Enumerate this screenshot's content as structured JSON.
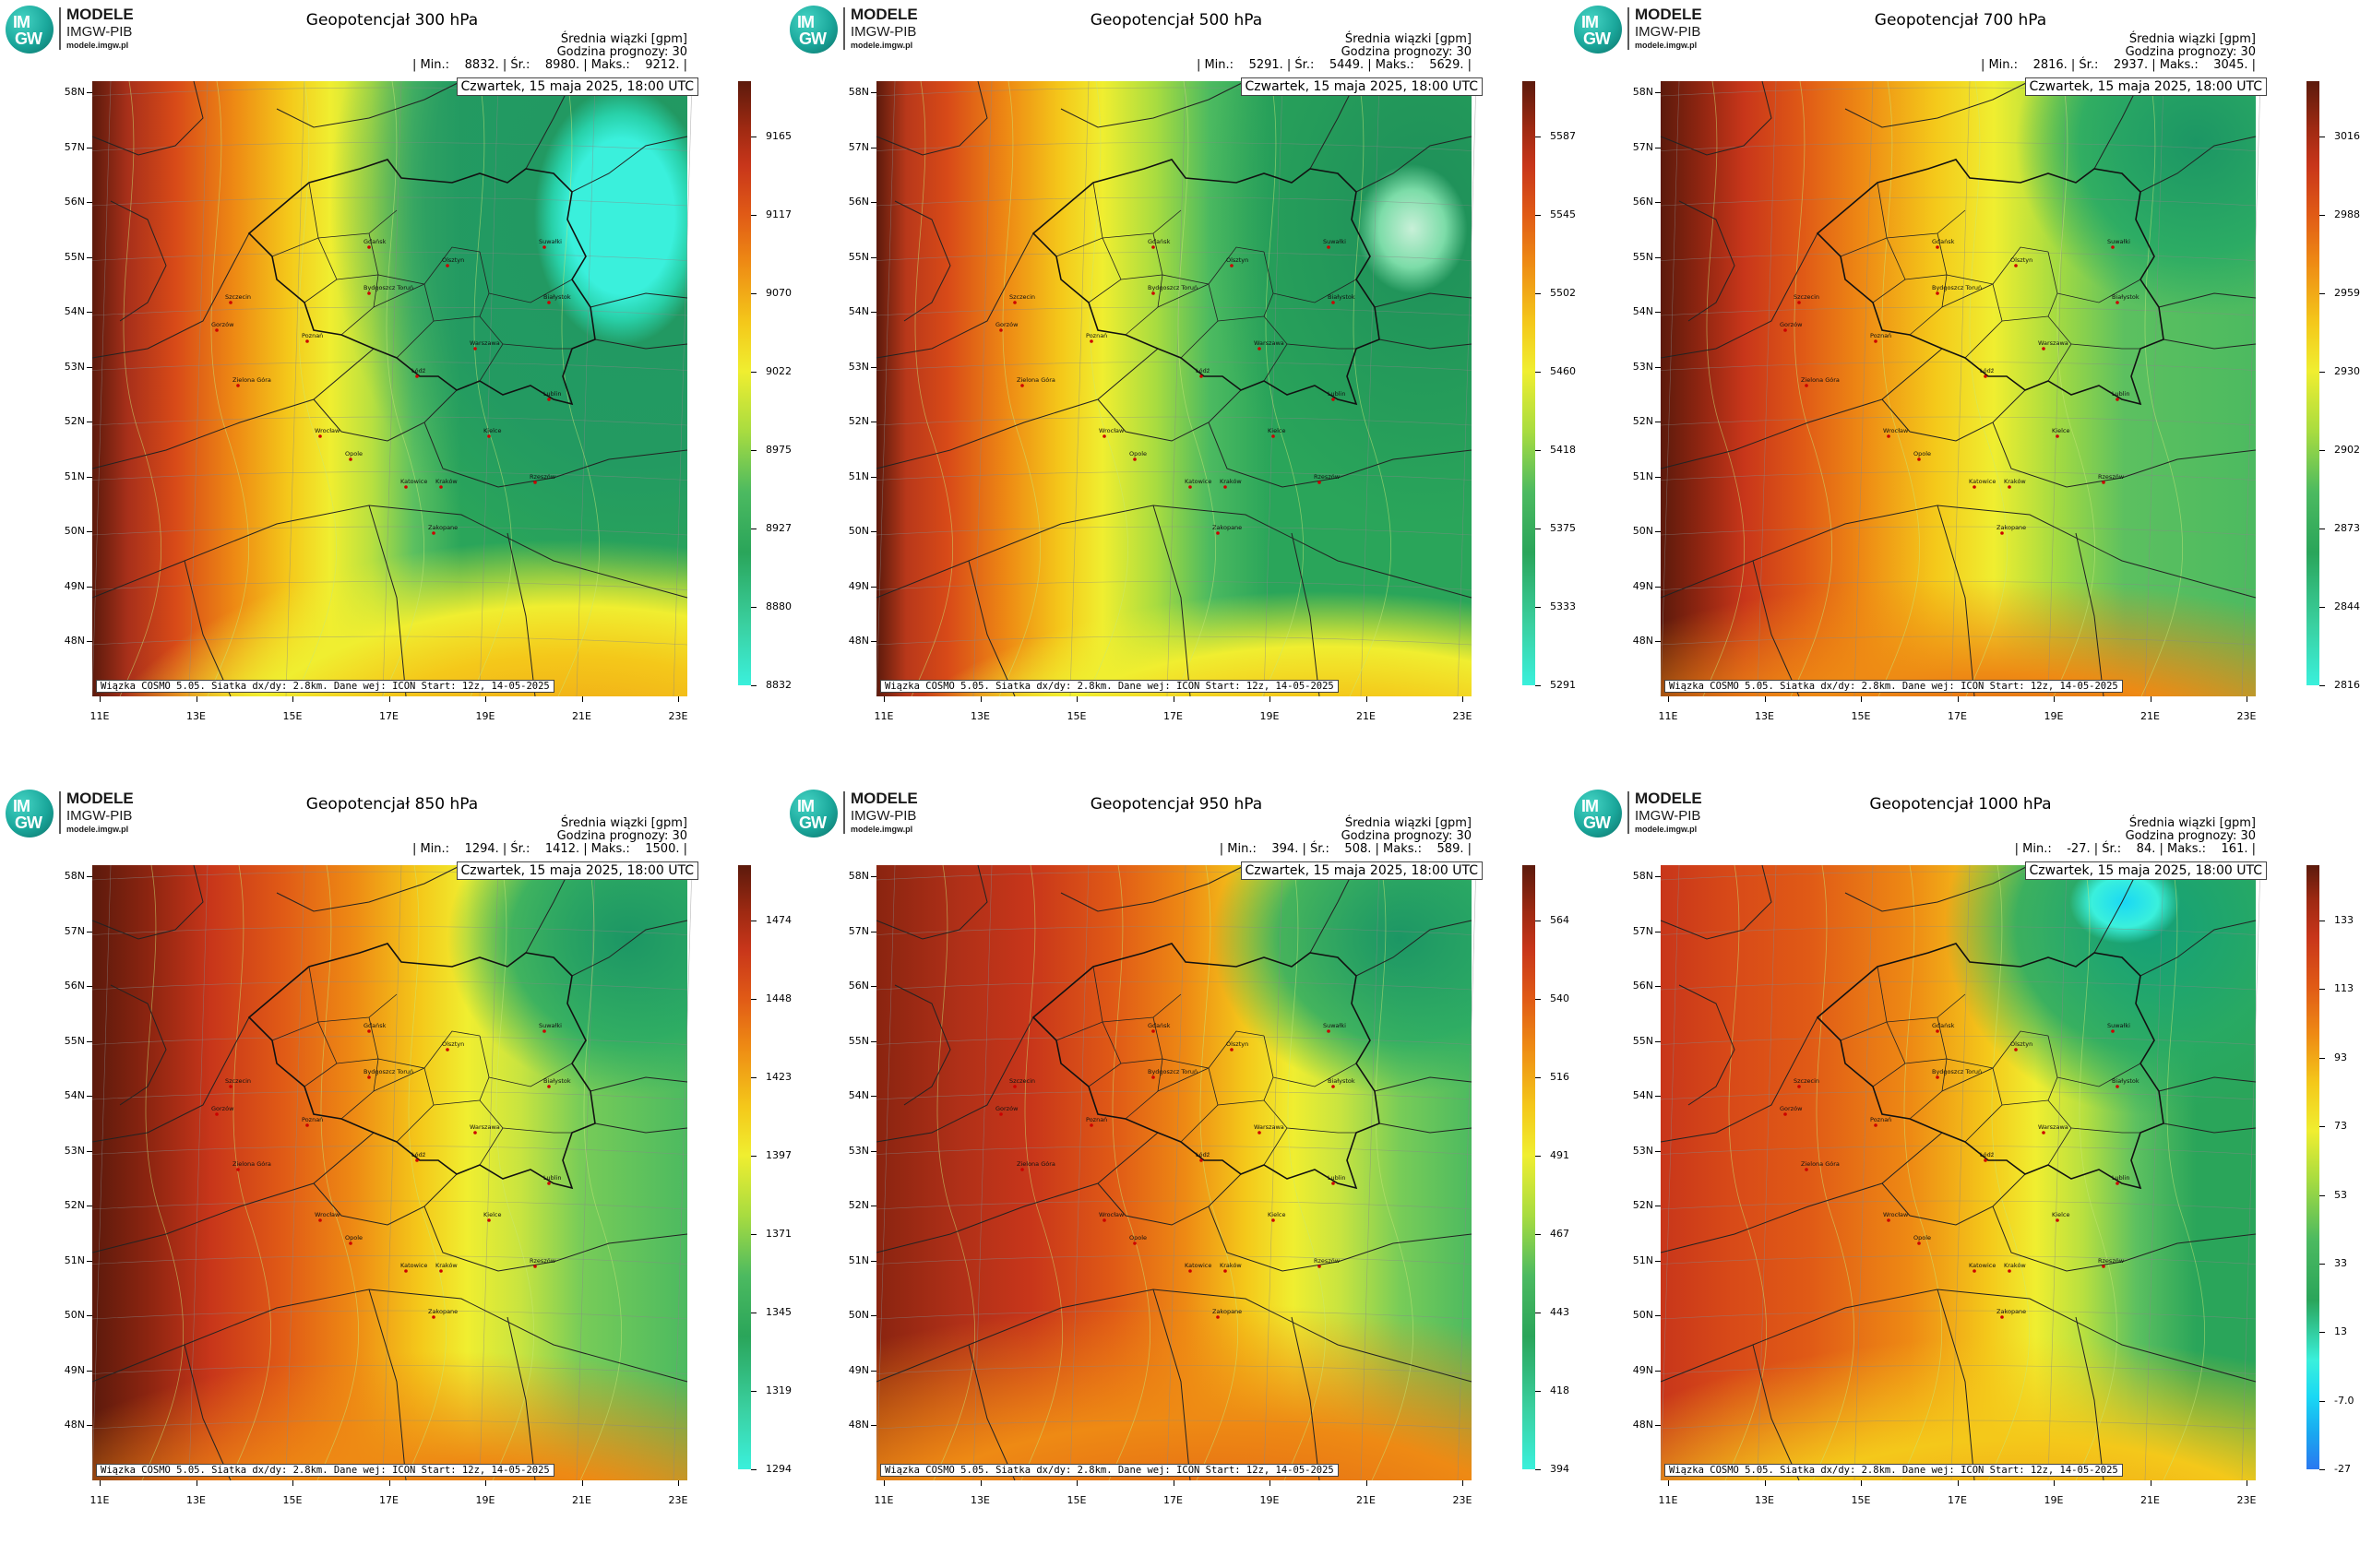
{
  "logo": {
    "line1": "MODELE",
    "line2": "IMGW-PIB",
    "line3": "modele.imgw.pl",
    "mark1": "IM",
    "mark2": "GW"
  },
  "info_title": "Średnia wiązki [gpm]",
  "forecast_hour": "Godzina prognozy: 30",
  "date": "Czwartek, 15 maja 2025, 18:00 UTC",
  "credit": "Wiązka COSMO 5.05. Siatka dx/dy: 2.8km. Dane wej: ICON Start: 12z, 14-05-2025",
  "lat_labels": [
    "58N",
    "57N",
    "56N",
    "55N",
    "54N",
    "53N",
    "52N",
    "51N",
    "50N",
    "49N",
    "48N"
  ],
  "lon_labels": [
    "11E",
    "13E",
    "15E",
    "17E",
    "19E",
    "21E",
    "23E"
  ],
  "colors": {
    "dark_red": "#5c1a0c",
    "red": "#c8361a",
    "orange": "#ee8a14",
    "yellow": "#f4e21a",
    "green": "#2aa55a",
    "cyan": "#3af0dc"
  },
  "panels": [
    {
      "title": "Geopotencjał 300 hPa",
      "stats": "| Min.:    8832. | Śr.:    8980. | Maks.:    9212. |",
      "cbar_ticks": [
        "9165",
        "9117",
        "9070",
        "9022",
        "8975",
        "8927",
        "8880",
        "8832"
      ],
      "cbar_type": "high_top"
    },
    {
      "title": "Geopotencjał 500 hPa",
      "stats": "| Min.:    5291. | Śr.:    5449. | Maks.:    5629. |",
      "cbar_ticks": [
        "5587",
        "5545",
        "5502",
        "5460",
        "5418",
        "5375",
        "5333",
        "5291"
      ],
      "cbar_type": "high_top"
    },
    {
      "title": "Geopotencjał 700 hPa",
      "stats": "| Min.:    2816. | Śr.:    2937. | Maks.:    3045. |",
      "cbar_ticks": [
        "3016",
        "2988",
        "2959",
        "2930",
        "2902",
        "2873",
        "2844",
        "2816"
      ],
      "cbar_type": "high_top"
    },
    {
      "title": "Geopotencjał 850 hPa",
      "stats": "| Min.:    1294. | Śr.:    1412. | Maks.:    1500. |",
      "cbar_ticks": [
        "1474",
        "1448",
        "1423",
        "1397",
        "1371",
        "1345",
        "1319",
        "1294"
      ],
      "cbar_type": "high_top"
    },
    {
      "title": "Geopotencjał 950 hPa",
      "stats": "| Min.:    394. | Śr.:    508. | Maks.:    589. |",
      "cbar_ticks": [
        "564",
        "540",
        "516",
        "491",
        "467",
        "443",
        "418",
        "394"
      ],
      "cbar_type": "high_top"
    },
    {
      "title": "Geopotencjał 1000 hPa",
      "stats": "| Min.:    -27. | Śr.:    84. | Maks.:    161. |",
      "cbar_ticks": [
        "133",
        "113",
        "93",
        "73",
        "53",
        "33",
        "13",
        "-7.0",
        "-27"
      ],
      "cbar_type": "with_blue"
    }
  ]
}
